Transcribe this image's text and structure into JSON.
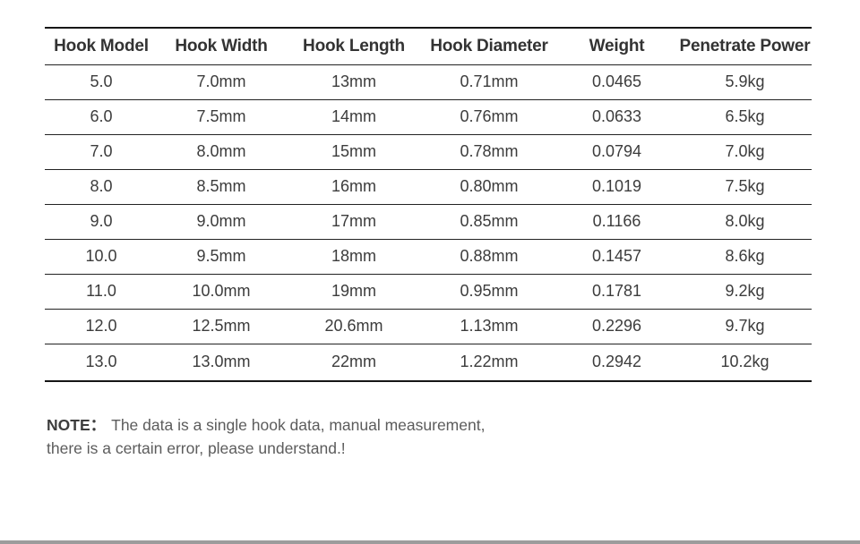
{
  "chart_data": {
    "type": "table",
    "columns": [
      "Hook Model",
      "Hook Width",
      "Hook Length",
      "Hook Diameter",
      "Weight",
      "Penetrate Power"
    ],
    "rows": [
      [
        "5.0",
        "7.0mm",
        "13mm",
        "0.71mm",
        "0.0465",
        "5.9kg"
      ],
      [
        "6.0",
        "7.5mm",
        "14mm",
        "0.76mm",
        "0.0633",
        "6.5kg"
      ],
      [
        "7.0",
        "8.0mm",
        "15mm",
        "0.78mm",
        "0.0794",
        "7.0kg"
      ],
      [
        "8.0",
        "8.5mm",
        "16mm",
        "0.80mm",
        "0.1019",
        "7.5kg"
      ],
      [
        "9.0",
        "9.0mm",
        "17mm",
        "0.85mm",
        "0.1166",
        "8.0kg"
      ],
      [
        "10.0",
        "9.5mm",
        "18mm",
        "0.88mm",
        "0.1457",
        "8.6kg"
      ],
      [
        "11.0",
        "10.0mm",
        "19mm",
        "0.95mm",
        "0.1781",
        "9.2kg"
      ],
      [
        "12.0",
        "12.5mm",
        "20.6mm",
        "1.13mm",
        "0.2296",
        "9.7kg"
      ],
      [
        "13.0",
        "13.0mm",
        "22mm",
        "1.22mm",
        "0.2942",
        "10.2kg"
      ]
    ],
    "layout": {
      "grid": "horizontal-rules-only",
      "header_bold": true
    }
  },
  "note": {
    "label": "NOTE：",
    "lines": [
      "The data is a single hook data, manual measurement,",
      "there is a certain error, please understand.!"
    ]
  },
  "colors": {
    "background": "#ffffff",
    "rule_heavy": "#161616",
    "rule_light": "#222222",
    "header_text": "#333333",
    "cell_text": "#3c3c3c",
    "note_text": "#5c5c5c",
    "bottom_bar": "#9c9c9c"
  }
}
